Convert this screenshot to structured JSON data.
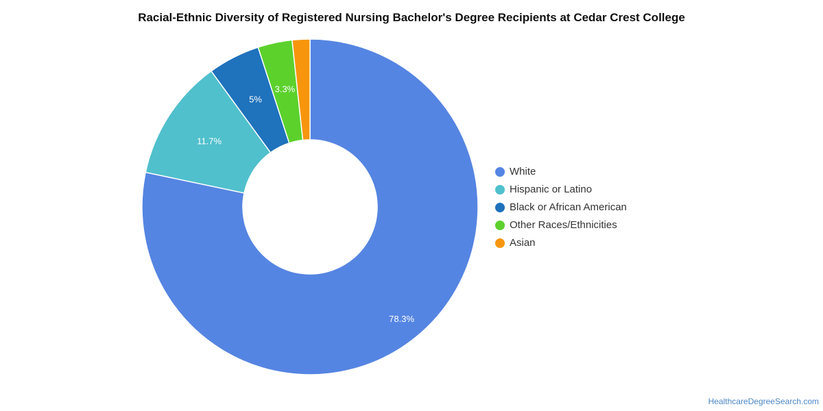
{
  "chart_data": {
    "type": "pie",
    "subtype": "donut",
    "title": "Racial-Ethnic Diversity of Registered Nursing Bachelor's Degree Recipients at Cedar Crest College",
    "legend_position": "right",
    "slices": [
      {
        "label": "White",
        "value": 78.3,
        "display_label": "78.3%",
        "color": "#5585e2"
      },
      {
        "label": "Hispanic or Latino",
        "value": 11.7,
        "display_label": "11.7%",
        "color": "#50c0cc"
      },
      {
        "label": "Black or African American",
        "value": 5,
        "display_label": "5%",
        "color": "#1f72bc"
      },
      {
        "label": "Other Races/Ethnicities",
        "value": 3.3,
        "display_label": "3.3%",
        "color": "#5cd12c"
      },
      {
        "label": "Asian",
        "value": 1.7,
        "display_label": "",
        "color": "#f7960d"
      }
    ]
  },
  "footer": {
    "source": "HealthcareDegreeSearch.com"
  }
}
